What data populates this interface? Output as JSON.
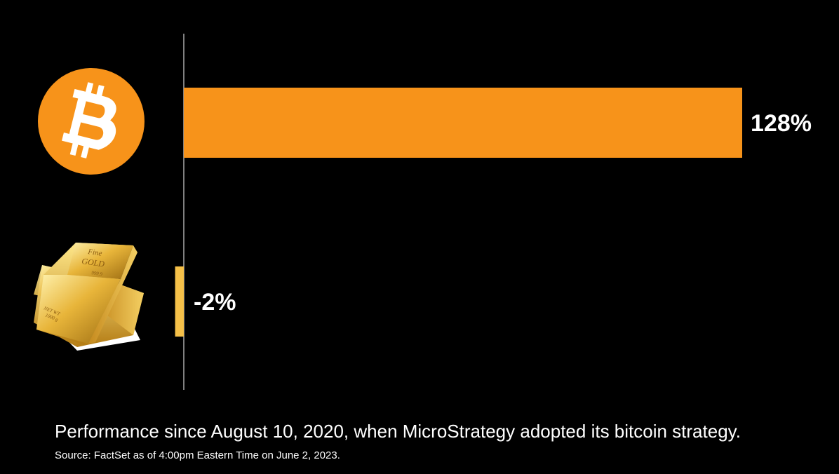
{
  "chart_data": {
    "type": "bar",
    "orientation": "horizontal",
    "categories": [
      "Bitcoin",
      "Gold"
    ],
    "category_icons": [
      "bitcoin-logo-icon",
      "gold-bars-icon"
    ],
    "values": [
      128,
      -2
    ],
    "value_labels": [
      "128%",
      "-2%"
    ],
    "unit": "%",
    "colors": [
      "#f7931a",
      "#f5c048"
    ],
    "xlim": [
      -2,
      128
    ],
    "grid": false,
    "baseline_color": "#ffffff"
  },
  "gold_bar_engraving": {
    "line1": "Fine",
    "line2": "GOLD",
    "line3": "999.9",
    "line4": "NET WT",
    "line5": "1000 g"
  },
  "caption": "Performance since August 10, 2020, when MicroStrategy adopted its bitcoin strategy.",
  "source": "Source: FactSet as of 4:00pm Eastern Time on June 2, 2023.",
  "colors": {
    "background": "#000000",
    "bitcoin_orange": "#f7931a",
    "gold": "#f5c048",
    "text": "#ffffff"
  }
}
